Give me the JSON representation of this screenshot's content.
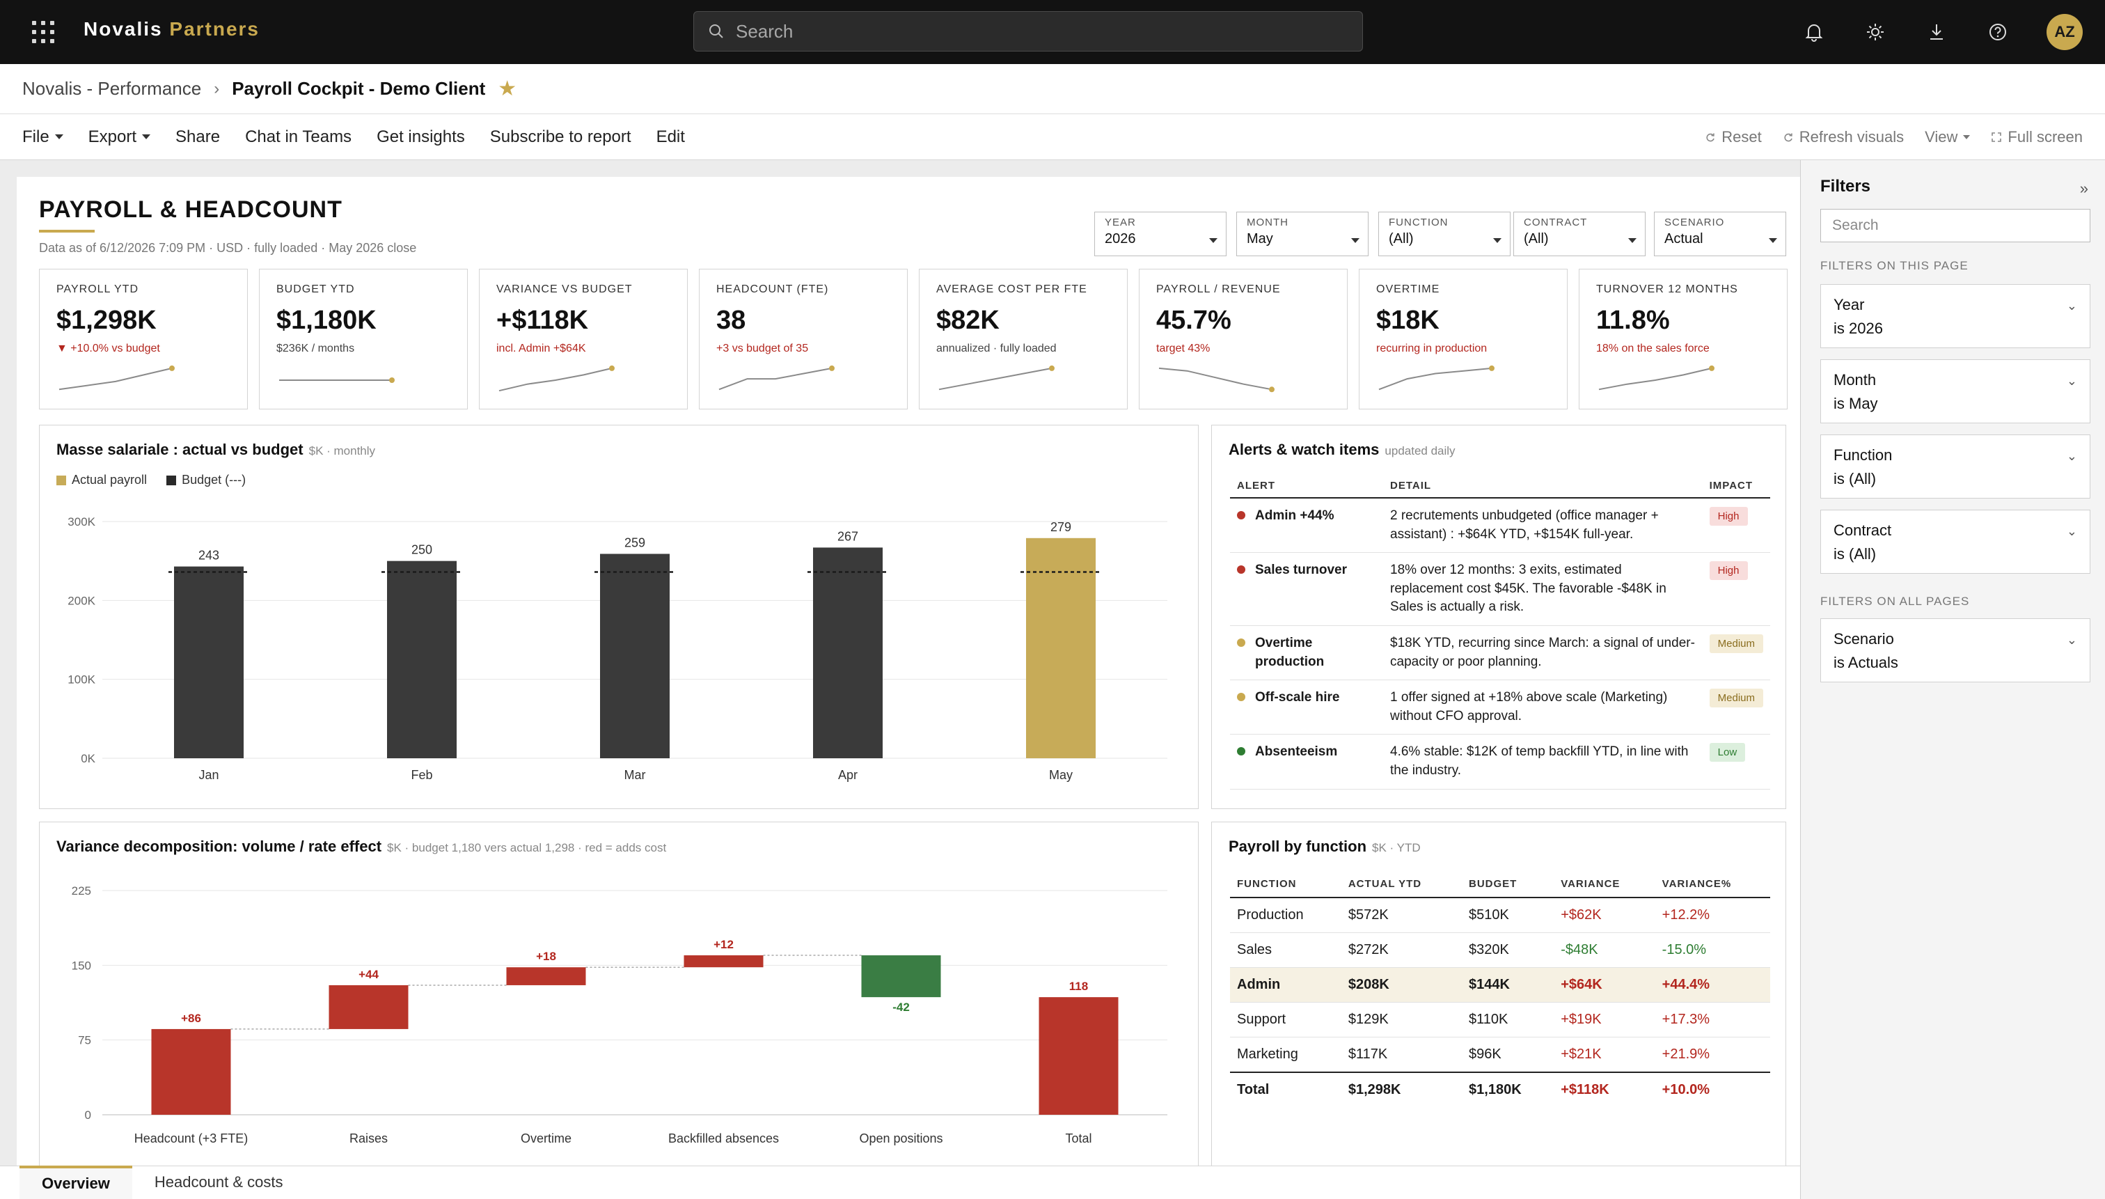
{
  "app": {
    "brand_primary": "Novalis",
    "brand_accent": "Partners",
    "search_placeholder": "Search",
    "user_initials": "AZ",
    "accent_color": "#c9a94f"
  },
  "breadcrumb": {
    "parent": "Novalis - Performance",
    "separator": "›",
    "current": "Payroll Cockpit - Demo Client"
  },
  "toolbar": {
    "file": "File",
    "export": "Export",
    "share": "Share",
    "chat": "Chat in Teams",
    "insights": "Get insights",
    "subscribe": "Subscribe to report",
    "edit": "Edit",
    "reset": "Reset",
    "refresh": "Refresh visuals",
    "view": "View",
    "fullscreen": "Full screen"
  },
  "report": {
    "title": "PAYROLL & HEADCOUNT",
    "subtitle": "Data as of 6/12/2026 7:09 PM · USD · fully loaded · May 2026 close",
    "slicers": [
      {
        "label": "YEAR",
        "value": "2026"
      },
      {
        "label": "MONTH",
        "value": "May"
      },
      {
        "label": "FUNCTION",
        "value": "(All)"
      },
      {
        "label": "CONTRACT",
        "value": "(All)"
      },
      {
        "label": "SCENARIO",
        "value": "Actual"
      }
    ],
    "kpis": [
      {
        "label": "PAYROLL YTD",
        "value": "$1,298K",
        "note": "▼ +10.0% vs budget",
        "note_red": true,
        "trend": [
          0.15,
          0.3,
          0.45,
          0.7,
          0.95
        ]
      },
      {
        "label": "BUDGET YTD",
        "value": "$1,180K",
        "note": "$236K / months",
        "note_red": false,
        "trend": [
          0.5,
          0.5,
          0.5,
          0.5,
          0.5
        ]
      },
      {
        "label": "VARIANCE VS BUDGET",
        "value": "+$118K",
        "note": "incl. Admin +$64K",
        "note_red": true,
        "trend": [
          0.1,
          0.35,
          0.5,
          0.7,
          0.95
        ]
      },
      {
        "label": "HEADCOUNT (FTE)",
        "value": "38",
        "note": "+3 vs budget of 35",
        "note_red": true,
        "trend": [
          0.15,
          0.55,
          0.55,
          0.75,
          0.95
        ]
      },
      {
        "label": "AVERAGE COST PER FTE",
        "value": "$82K",
        "note": "annualized · fully loaded",
        "note_red": false,
        "trend": [
          0.15,
          0.35,
          0.55,
          0.75,
          0.95
        ]
      },
      {
        "label": "PAYROLL / REVENUE",
        "value": "45.7%",
        "note": "target 43%",
        "note_red": true,
        "trend": [
          0.95,
          0.85,
          0.6,
          0.35,
          0.15
        ]
      },
      {
        "label": "OVERTIME",
        "value": "$18K",
        "note": "recurring in production",
        "note_red": true,
        "trend": [
          0.15,
          0.55,
          0.75,
          0.85,
          0.95
        ]
      },
      {
        "label": "TURNOVER 12 MONTHS",
        "value": "11.8%",
        "note": "18% on the sales force",
        "note_red": true,
        "trend": [
          0.15,
          0.35,
          0.5,
          0.7,
          0.95
        ]
      }
    ]
  },
  "payroll_chart": {
    "title": "Masse salariale : actual vs budget",
    "subtitle": "$K · monthly",
    "legend_actual": "Actual payroll",
    "legend_budget": "Budget (---)"
  },
  "variance_chart": {
    "title": "Variance decomposition: volume / rate effect",
    "subtitle": "$K · budget 1,180 vers actual 1,298 · red = adds cost"
  },
  "chart_data": [
    {
      "type": "bar",
      "title": "Masse salariale : actual vs budget",
      "categories": [
        "Jan",
        "Feb",
        "Mar",
        "Apr",
        "May"
      ],
      "series": [
        {
          "name": "Actual payroll",
          "values": [
            243,
            250,
            259,
            267,
            279
          ]
        },
        {
          "name": "Budget (---)",
          "values": [
            236,
            236,
            236,
            236,
            236
          ]
        }
      ],
      "data_labels": [
        "243",
        "250",
        "259",
        "267",
        "279"
      ],
      "y_ticks": [
        "0K",
        "100K",
        "200K",
        "300K"
      ],
      "ylim": [
        0,
        300
      ],
      "highlight_category": "May",
      "colors": {
        "actual": "#3a3a3a",
        "highlight": "#c7ab58",
        "budget": "#1a1a1a"
      }
    },
    {
      "type": "bar",
      "title": "Variance decomposition: volume / rate effect",
      "categories": [
        "Headcount (+3 FTE)",
        "Raises",
        "Overtime",
        "Backfilled absences",
        "Open positions",
        "Total"
      ],
      "values": [
        86,
        44,
        18,
        12,
        -42,
        118
      ],
      "data_labels": [
        "+86",
        "+44",
        "+18",
        "+12",
        "-42",
        "118"
      ],
      "y_ticks": [
        "0",
        "75",
        "150",
        "225"
      ],
      "ylim": [
        0,
        225
      ],
      "colors": {
        "increase": "#b8352a",
        "decrease": "#3a7d44",
        "total": "#b8352a"
      }
    }
  ],
  "alerts": {
    "title": "Alerts & watch items",
    "subtitle": "updated daily",
    "headers": [
      "ALERT",
      "DETAIL",
      "IMPACT"
    ],
    "rows": [
      {
        "name": "Admin +44%",
        "detail": "2 recrutements unbudgeted (office manager + assistant) : +$64K YTD, +$154K full-year.",
        "impact": "High",
        "color": "#b8352a"
      },
      {
        "name": "Sales turnover",
        "detail": "18% over 12 months: 3 exits, estimated replacement cost $45K. The favorable -$48K in Sales is actually a risk.",
        "impact": "High",
        "color": "#b8352a"
      },
      {
        "name": "Overtime production",
        "detail": "$18K YTD, recurring since March: a signal of under-capacity or poor planning.",
        "impact": "Medium",
        "color": "#c9a94f"
      },
      {
        "name": "Off-scale hire",
        "detail": "1 offer signed at +18% above scale (Marketing) without CFO approval.",
        "impact": "Medium",
        "color": "#c9a94f"
      },
      {
        "name": "Absenteeism",
        "detail": "4.6% stable: $12K of temp backfill YTD, in line with the industry.",
        "impact": "Low",
        "color": "#2e7d32"
      }
    ]
  },
  "by_function": {
    "title": "Payroll by function",
    "subtitle": "$K · YTD",
    "headers": [
      "FUNCTION",
      "ACTUAL YTD",
      "BUDGET",
      "VARIANCE",
      "VARIANCE%"
    ],
    "rows": [
      {
        "function": "Production",
        "actual": "$572K",
        "budget": "$510K",
        "variance": "+$62K",
        "pct": "+12.2%",
        "sign": "pos",
        "highlight": false
      },
      {
        "function": "Sales",
        "actual": "$272K",
        "budget": "$320K",
        "variance": "-$48K",
        "pct": "-15.0%",
        "sign": "neg",
        "highlight": false
      },
      {
        "function": "Admin",
        "actual": "$208K",
        "budget": "$144K",
        "variance": "+$64K",
        "pct": "+44.4%",
        "sign": "pos",
        "highlight": true
      },
      {
        "function": "Support",
        "actual": "$129K",
        "budget": "$110K",
        "variance": "+$19K",
        "pct": "+17.3%",
        "sign": "pos",
        "highlight": false
      },
      {
        "function": "Marketing",
        "actual": "$117K",
        "budget": "$96K",
        "variance": "+$21K",
        "pct": "+21.9%",
        "sign": "pos",
        "highlight": false
      }
    ],
    "total": {
      "function": "Total",
      "actual": "$1,298K",
      "budget": "$1,180K",
      "variance": "+$118K",
      "pct": "+10.0%"
    }
  },
  "page_tabs": [
    {
      "label": "Overview",
      "active": true
    },
    {
      "label": "Headcount & costs",
      "active": false
    }
  ],
  "filters": {
    "title": "Filters",
    "collapse": "»",
    "search_placeholder": "Search",
    "section_page": "FILTERS ON THIS PAGE",
    "section_all": "FILTERS ON ALL PAGES",
    "page_filters": [
      {
        "name": "Year",
        "value": "is 2026"
      },
      {
        "name": "Month",
        "value": "is May"
      },
      {
        "name": "Function",
        "value": "is (All)"
      },
      {
        "name": "Contract",
        "value": "is (All)"
      }
    ],
    "all_filters": [
      {
        "name": "Scenario",
        "value": "is Actuals"
      }
    ]
  }
}
